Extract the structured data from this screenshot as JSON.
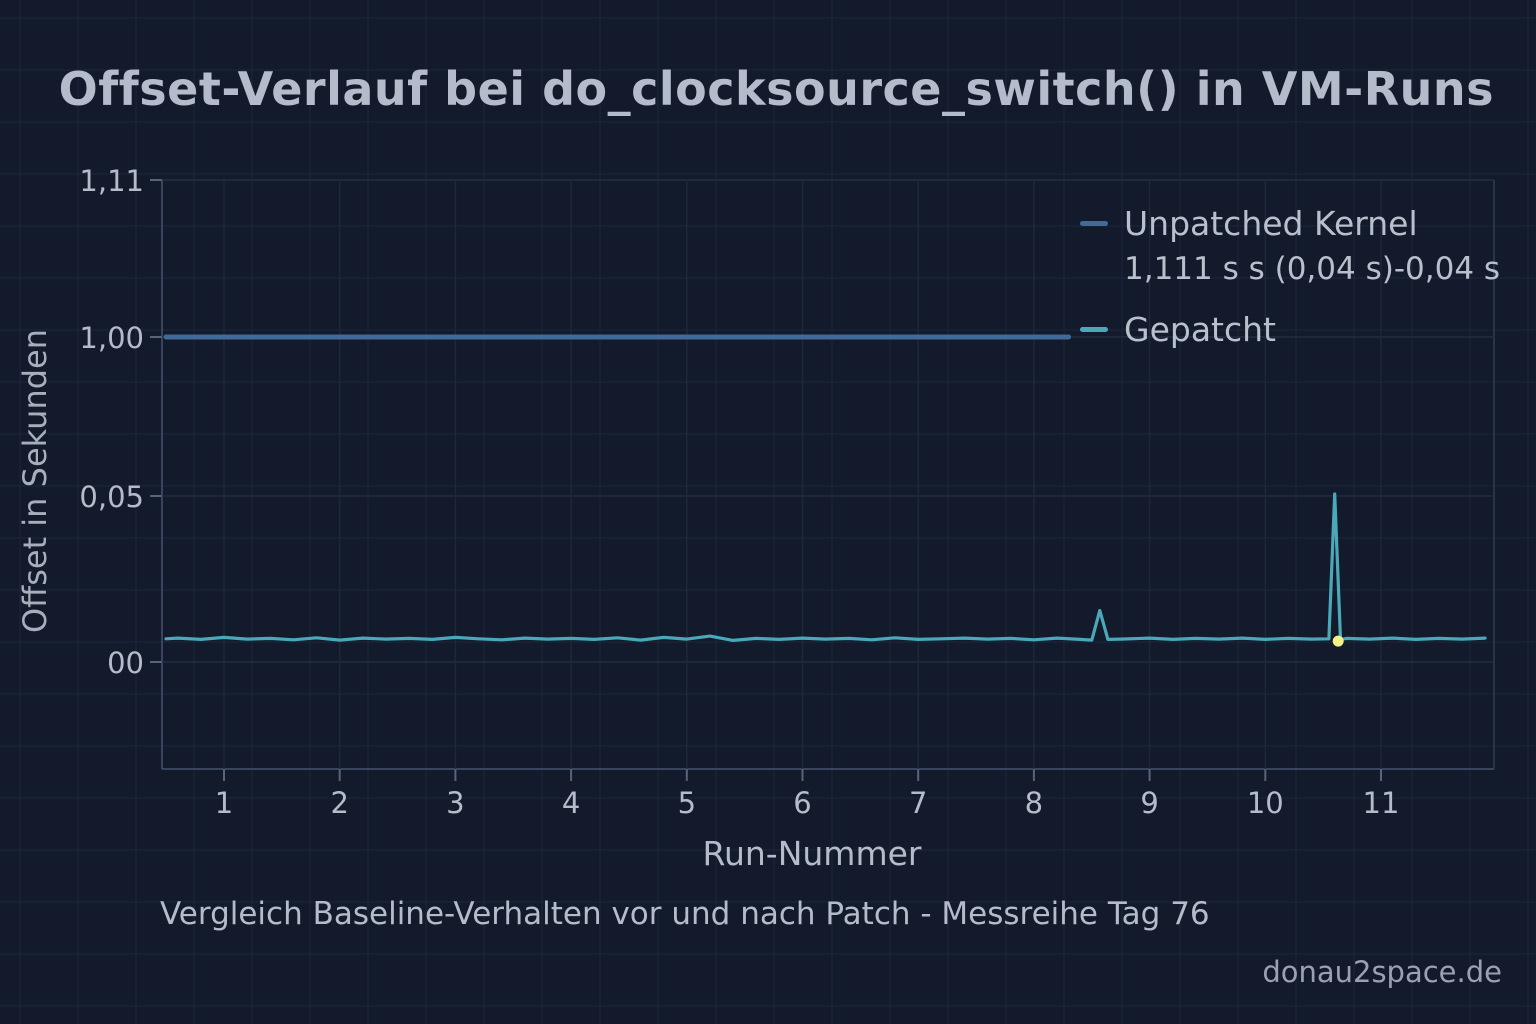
{
  "chart_data": {
    "type": "line",
    "title": "Offset-Verlauf bei do_clocksource_switch() in VM-Runs",
    "subtitle": "Vergleich Baseline-Verhalten vor und nach Patch - Messreihe Tag 76",
    "xlabel": "Run-Nummer",
    "ylabel": "Offset in Sekunden",
    "x_ticks": [
      "1",
      "2",
      "3",
      "4",
      "5",
      "6",
      "7",
      "8",
      "9",
      "10",
      "11"
    ],
    "y_ticks": [
      "1,11",
      "1,00",
      "0,05",
      "00"
    ],
    "grid": true,
    "legend_position": "top-right",
    "series": [
      {
        "name": "Unpatched Kernel",
        "color": "#3f6a9a",
        "x": [
          0.4,
          8.3
        ],
        "y": [
          1.0,
          1.0
        ]
      },
      {
        "name": "Gepatcht",
        "color": "#4aa8b8",
        "x": [
          0.4,
          0.6,
          0.8,
          1.0,
          1.2,
          1.4,
          1.6,
          1.8,
          2.0,
          2.2,
          2.4,
          2.6,
          2.8,
          3.0,
          3.2,
          3.4,
          3.6,
          3.8,
          4.0,
          4.2,
          4.4,
          4.6,
          4.8,
          5.0,
          5.2,
          5.4,
          5.6,
          5.8,
          6.0,
          6.2,
          6.4,
          6.6,
          6.8,
          7.0,
          7.2,
          7.4,
          7.6,
          7.8,
          8.0,
          8.2,
          8.4,
          8.5,
          8.57,
          8.64,
          8.75,
          9.0,
          9.2,
          9.4,
          9.6,
          9.8,
          10.0,
          10.2,
          10.4,
          10.55,
          10.6,
          10.65,
          10.7,
          10.9,
          11.1,
          11.3,
          11.5,
          11.7,
          11.9
        ],
        "y": [
          0.007,
          0.0072,
          0.0068,
          0.0074,
          0.0069,
          0.0071,
          0.0067,
          0.0073,
          0.0066,
          0.0072,
          0.0069,
          0.0071,
          0.0068,
          0.0074,
          0.007,
          0.0067,
          0.0072,
          0.0069,
          0.0071,
          0.0068,
          0.0073,
          0.0066,
          0.0074,
          0.0069,
          0.0078,
          0.0065,
          0.0071,
          0.0068,
          0.0072,
          0.0069,
          0.0071,
          0.0067,
          0.0073,
          0.0068,
          0.007,
          0.0072,
          0.0069,
          0.0071,
          0.0067,
          0.0072,
          0.0068,
          0.0066,
          0.0155,
          0.0068,
          0.0069,
          0.0072,
          0.0068,
          0.0071,
          0.0069,
          0.0072,
          0.0068,
          0.0071,
          0.0069,
          0.007,
          0.062,
          0.0068,
          0.0071,
          0.0069,
          0.0072,
          0.0068,
          0.0071,
          0.0069,
          0.0072
        ]
      }
    ],
    "highlight_point": {
      "x": 10.63,
      "y": 0.0063,
      "color": "#f3f08a"
    },
    "annotation": "1,111 s   s (0,04 s)-0,04 s"
  },
  "watermark": "donau2space.de"
}
